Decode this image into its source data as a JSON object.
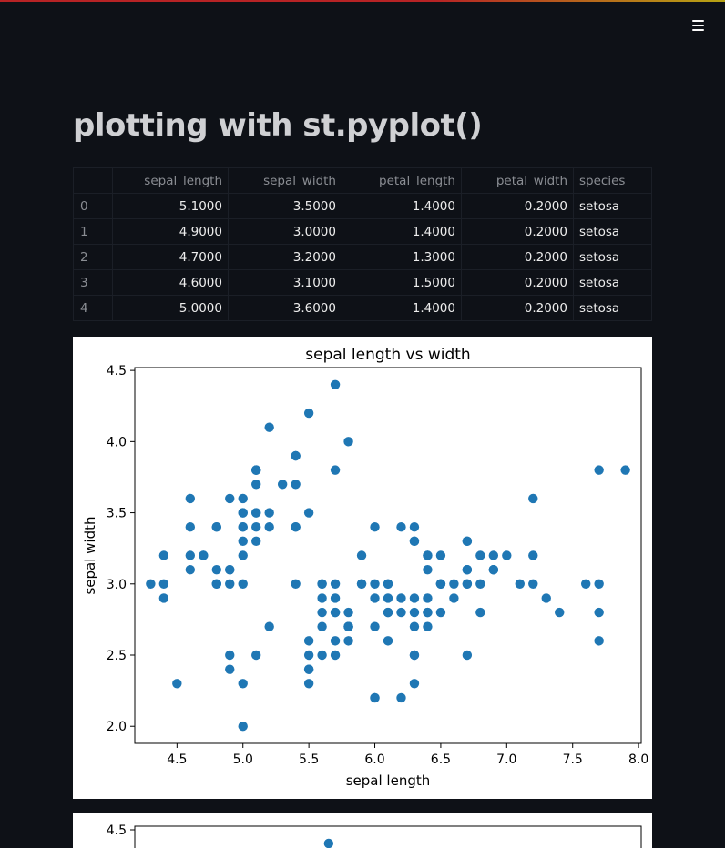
{
  "app": {
    "menu_icon": "hamburger-menu-icon"
  },
  "page": {
    "title": "plotting with st.pyplot()"
  },
  "dataframe": {
    "columns": [
      "",
      "sepal_length",
      "sepal_width",
      "petal_length",
      "petal_width",
      "species"
    ],
    "rows": [
      [
        "0",
        "5.1000",
        "3.5000",
        "1.4000",
        "0.2000",
        "setosa"
      ],
      [
        "1",
        "4.9000",
        "3.0000",
        "1.4000",
        "0.2000",
        "setosa"
      ],
      [
        "2",
        "4.7000",
        "3.2000",
        "1.3000",
        "0.2000",
        "setosa"
      ],
      [
        "3",
        "4.6000",
        "3.1000",
        "1.5000",
        "0.2000",
        "setosa"
      ],
      [
        "4",
        "5.0000",
        "3.6000",
        "1.4000",
        "0.2000",
        "setosa"
      ]
    ]
  },
  "chart_data": [
    {
      "type": "scatter",
      "title": "sepal length vs width",
      "xlabel": "sepal length",
      "ylabel": "sepal width",
      "xlim": [
        4.18,
        8.02
      ],
      "ylim": [
        1.88,
        4.52
      ],
      "xticks": [
        "4.5",
        "5.0",
        "5.5",
        "6.0",
        "6.5",
        "7.0",
        "7.5",
        "8.0"
      ],
      "yticks": [
        "2.0",
        "2.5",
        "3.0",
        "3.5",
        "4.0",
        "4.5"
      ],
      "marker_color": "#1f77b4",
      "grid": false,
      "series": [
        {
          "points": [
            [
              5.1,
              3.5
            ],
            [
              4.9,
              3.0
            ],
            [
              4.7,
              3.2
            ],
            [
              4.6,
              3.1
            ],
            [
              5.0,
              3.6
            ],
            [
              5.4,
              3.9
            ],
            [
              4.6,
              3.4
            ],
            [
              5.0,
              3.4
            ],
            [
              4.4,
              2.9
            ],
            [
              4.9,
              3.1
            ],
            [
              5.4,
              3.7
            ],
            [
              4.8,
              3.4
            ],
            [
              4.8,
              3.0
            ],
            [
              4.3,
              3.0
            ],
            [
              5.8,
              4.0
            ],
            [
              5.7,
              4.4
            ],
            [
              5.4,
              3.9
            ],
            [
              5.1,
              3.5
            ],
            [
              5.7,
              3.8
            ],
            [
              5.1,
              3.8
            ],
            [
              5.4,
              3.4
            ],
            [
              5.1,
              3.7
            ],
            [
              4.6,
              3.6
            ],
            [
              5.1,
              3.3
            ],
            [
              4.8,
              3.4
            ],
            [
              5.0,
              3.0
            ],
            [
              5.0,
              3.4
            ],
            [
              5.2,
              3.5
            ],
            [
              5.2,
              3.4
            ],
            [
              4.7,
              3.2
            ],
            [
              4.8,
              3.1
            ],
            [
              5.4,
              3.4
            ],
            [
              5.2,
              4.1
            ],
            [
              5.5,
              4.2
            ],
            [
              4.9,
              3.1
            ],
            [
              5.0,
              3.2
            ],
            [
              5.5,
              3.5
            ],
            [
              4.9,
              3.6
            ],
            [
              4.4,
              3.0
            ],
            [
              5.1,
              3.4
            ],
            [
              5.0,
              3.5
            ],
            [
              4.5,
              2.3
            ],
            [
              4.4,
              3.2
            ],
            [
              5.0,
              3.5
            ],
            [
              5.1,
              3.8
            ],
            [
              4.8,
              3.0
            ],
            [
              5.1,
              3.8
            ],
            [
              4.6,
              3.2
            ],
            [
              5.3,
              3.7
            ],
            [
              5.0,
              3.3
            ],
            [
              7.0,
              3.2
            ],
            [
              6.4,
              3.2
            ],
            [
              6.9,
              3.1
            ],
            [
              5.5,
              2.3
            ],
            [
              6.5,
              2.8
            ],
            [
              5.7,
              2.8
            ],
            [
              6.3,
              3.3
            ],
            [
              4.9,
              2.4
            ],
            [
              6.6,
              2.9
            ],
            [
              5.2,
              2.7
            ],
            [
              5.0,
              2.0
            ],
            [
              5.9,
              3.0
            ],
            [
              6.0,
              2.2
            ],
            [
              6.1,
              2.9
            ],
            [
              5.6,
              2.9
            ],
            [
              6.7,
              3.1
            ],
            [
              5.6,
              3.0
            ],
            [
              5.8,
              2.7
            ],
            [
              6.2,
              2.2
            ],
            [
              5.6,
              2.5
            ],
            [
              5.9,
              3.2
            ],
            [
              6.1,
              2.8
            ],
            [
              6.3,
              2.5
            ],
            [
              6.1,
              2.8
            ],
            [
              6.4,
              2.9
            ],
            [
              6.6,
              3.0
            ],
            [
              6.8,
              2.8
            ],
            [
              6.7,
              3.0
            ],
            [
              6.0,
              2.9
            ],
            [
              5.7,
              2.6
            ],
            [
              5.5,
              2.4
            ],
            [
              5.5,
              2.4
            ],
            [
              5.8,
              2.7
            ],
            [
              6.0,
              2.7
            ],
            [
              5.4,
              3.0
            ],
            [
              6.0,
              3.4
            ],
            [
              6.7,
              3.1
            ],
            [
              6.3,
              2.3
            ],
            [
              5.6,
              3.0
            ],
            [
              5.5,
              2.5
            ],
            [
              5.5,
              2.6
            ],
            [
              6.1,
              3.0
            ],
            [
              5.8,
              2.6
            ],
            [
              5.0,
              2.3
            ],
            [
              5.6,
              2.7
            ],
            [
              5.7,
              3.0
            ],
            [
              5.7,
              2.9
            ],
            [
              6.2,
              2.9
            ],
            [
              5.1,
              2.5
            ],
            [
              5.7,
              2.8
            ],
            [
              6.3,
              3.3
            ],
            [
              5.8,
              2.7
            ],
            [
              7.1,
              3.0
            ],
            [
              6.3,
              2.9
            ],
            [
              6.5,
              3.0
            ],
            [
              7.6,
              3.0
            ],
            [
              4.9,
              2.5
            ],
            [
              7.3,
              2.9
            ],
            [
              6.7,
              2.5
            ],
            [
              7.2,
              3.6
            ],
            [
              6.5,
              3.2
            ],
            [
              6.4,
              2.7
            ],
            [
              6.8,
              3.0
            ],
            [
              5.7,
              2.5
            ],
            [
              5.8,
              2.8
            ],
            [
              6.4,
              3.2
            ],
            [
              6.5,
              3.0
            ],
            [
              7.7,
              3.8
            ],
            [
              7.7,
              2.6
            ],
            [
              6.0,
              2.2
            ],
            [
              6.9,
              3.2
            ],
            [
              5.6,
              2.8
            ],
            [
              7.7,
              2.8
            ],
            [
              6.3,
              2.7
            ],
            [
              6.7,
              3.3
            ],
            [
              7.2,
              3.2
            ],
            [
              6.2,
              2.8
            ],
            [
              6.1,
              3.0
            ],
            [
              6.4,
              2.8
            ],
            [
              7.2,
              3.0
            ],
            [
              7.4,
              2.8
            ],
            [
              7.9,
              3.8
            ],
            [
              6.4,
              2.8
            ],
            [
              6.3,
              2.8
            ],
            [
              6.1,
              2.6
            ],
            [
              7.7,
              3.0
            ],
            [
              6.3,
              3.4
            ],
            [
              6.4,
              3.1
            ],
            [
              6.0,
              3.0
            ],
            [
              6.9,
              3.1
            ],
            [
              6.7,
              3.1
            ],
            [
              6.9,
              3.1
            ],
            [
              5.8,
              2.7
            ],
            [
              6.8,
              3.2
            ],
            [
              6.7,
              3.3
            ],
            [
              6.7,
              3.0
            ],
            [
              6.3,
              2.5
            ],
            [
              6.5,
              3.0
            ],
            [
              6.2,
              3.4
            ],
            [
              5.9,
              3.0
            ]
          ]
        }
      ]
    },
    {
      "type": "scatter",
      "yticks": [
        "4.5"
      ],
      "points": [
        [
          5.65,
          4.4
        ]
      ],
      "marker_color": "#1f77b4"
    }
  ]
}
